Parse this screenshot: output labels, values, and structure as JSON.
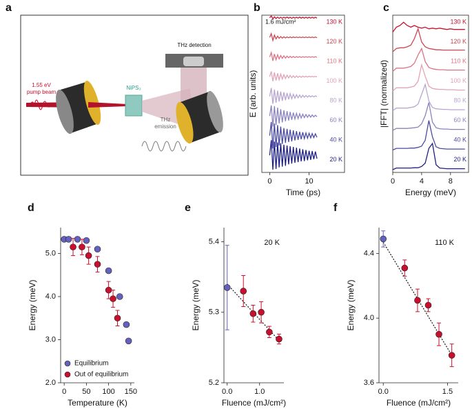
{
  "chart_data": [
    {
      "type": "diagram",
      "panel_label": "a",
      "labels": {
        "pump": [
          "1.55 eV",
          "pump beam"
        ],
        "sample": "NiPS₃",
        "detection": "THz detection",
        "emission": [
          "THz",
          "emission"
        ]
      }
    },
    {
      "type": "line",
      "panel_label": "b",
      "annotation": "1.6 mJ/cm²",
      "ylabel": "E (arb. units)",
      "xlabel": "Time (ps)",
      "xlim": [
        -2,
        19
      ],
      "xticks": [
        0,
        10
      ],
      "box": true,
      "x": [
        0,
        0.4,
        0.8,
        1.2,
        1.6,
        2,
        2.4,
        2.8,
        3.2,
        3.6,
        4,
        4.4,
        4.8,
        5.2,
        5.6,
        6,
        6.4,
        6.8,
        7.2,
        7.6,
        8,
        8.4,
        8.8,
        9.2,
        9.6,
        10,
        10.4,
        10.8,
        11.2,
        11.6,
        12
      ],
      "series": [
        {
          "name": "130 K",
          "color": "#c8102e",
          "values": [
            0,
            0.12,
            -0.08,
            0.06,
            -0.05,
            0.04,
            -0.04,
            0.03,
            -0.04,
            0.03,
            -0.03,
            0.04,
            -0.03,
            0.03,
            -0.04,
            0.03,
            -0.03,
            0.03,
            -0.03,
            0.04,
            -0.03,
            0.03,
            -0.03,
            0.03,
            -0.03,
            0.03,
            -0.03,
            0.03,
            -0.03,
            0.03,
            -0.03
          ]
        },
        {
          "name": "120 K",
          "color": "#d0454f",
          "values": [
            0,
            0.25,
            -0.2,
            0.15,
            -0.1,
            0.08,
            -0.06,
            0.05,
            -0.05,
            0.04,
            -0.04,
            0.03,
            -0.03,
            0.03,
            -0.03,
            0.03,
            -0.02,
            0.02,
            -0.02,
            0.02,
            -0.02,
            0.02,
            -0.02,
            0.02,
            -0.02,
            0.02,
            -0.02,
            0.02,
            -0.02,
            0.02,
            -0.02
          ]
        },
        {
          "name": "110 K",
          "color": "#d97583",
          "values": [
            0,
            0.3,
            -0.25,
            0.2,
            -0.18,
            0.15,
            -0.12,
            0.1,
            -0.09,
            0.08,
            -0.07,
            0.06,
            -0.05,
            0.05,
            -0.04,
            0.04,
            -0.04,
            0.03,
            -0.03,
            0.03,
            -0.03,
            0.02,
            -0.02,
            0.02,
            -0.02,
            0.02,
            -0.02,
            0.02,
            -0.02,
            0.02,
            -0.02
          ]
        },
        {
          "name": "100 K",
          "color": "#e2a3b5",
          "values": [
            0,
            0.35,
            -0.3,
            0.28,
            -0.25,
            0.22,
            -0.2,
            0.17,
            -0.15,
            0.13,
            -0.12,
            0.1,
            -0.09,
            0.08,
            -0.07,
            0.06,
            -0.06,
            0.05,
            -0.05,
            0.04,
            -0.04,
            0.04,
            -0.03,
            0.03,
            -0.03,
            0.03,
            -0.02,
            0.02,
            -0.02,
            0.02,
            -0.02
          ]
        },
        {
          "name": "80 K",
          "color": "#b8a6d0",
          "values": [
            0,
            0.55,
            -0.5,
            0.45,
            -0.42,
            0.38,
            -0.35,
            0.32,
            -0.3,
            0.27,
            -0.25,
            0.22,
            -0.2,
            0.18,
            -0.16,
            0.14,
            -0.12,
            0.11,
            -0.1,
            0.09,
            -0.08,
            0.07,
            -0.06,
            0.06,
            -0.05,
            0.05,
            -0.04,
            0.04,
            -0.04,
            0.03,
            -0.03
          ]
        },
        {
          "name": "60 K",
          "color": "#8a83c0",
          "values": [
            0,
            0.7,
            -0.7,
            0.65,
            -0.6,
            0.55,
            -0.5,
            0.45,
            -0.42,
            0.38,
            -0.35,
            0.32,
            -0.3,
            0.27,
            -0.25,
            0.22,
            -0.2,
            0.18,
            -0.17,
            0.15,
            -0.14,
            0.12,
            -0.11,
            0.1,
            -0.09,
            0.08,
            -0.08,
            0.07,
            -0.06,
            0.05,
            -0.05
          ]
        },
        {
          "name": "40 K",
          "color": "#4b4aa3",
          "values": [
            0,
            0.9,
            -0.85,
            0.8,
            -0.75,
            0.7,
            -0.65,
            0.6,
            -0.55,
            0.5,
            -0.48,
            0.45,
            -0.42,
            0.4,
            -0.38,
            0.35,
            -0.32,
            0.3,
            -0.28,
            0.26,
            -0.24,
            0.22,
            -0.2,
            0.18,
            -0.17,
            0.16,
            -0.15,
            0.14,
            -0.13,
            0.12,
            -0.11
          ]
        },
        {
          "name": "20 K",
          "color": "#1d1f85",
          "values": [
            0,
            1,
            -0.95,
            0.9,
            -0.9,
            0.85,
            -0.8,
            0.8,
            -0.75,
            0.7,
            -0.7,
            0.65,
            -0.6,
            0.6,
            -0.55,
            0.55,
            -0.5,
            0.5,
            -0.45,
            0.45,
            -0.4,
            0.4,
            -0.38,
            0.35,
            -0.33,
            0.3,
            -0.3,
            0.28,
            -0.25,
            0.25,
            -0.22
          ]
        }
      ]
    },
    {
      "type": "line",
      "panel_label": "c",
      "ylabel": "|FFT| (normalized)",
      "xlabel": "Energy (meV)",
      "xlim": [
        0,
        10.5
      ],
      "xticks": [
        0,
        4,
        8
      ],
      "box": true,
      "x": [
        0,
        0.5,
        1,
        1.5,
        2,
        2.5,
        3,
        3.5,
        4,
        4.5,
        5,
        5.5,
        6,
        6.5,
        7,
        7.5,
        8,
        8.5,
        9,
        9.5,
        10
      ],
      "series": [
        {
          "name": "130 K",
          "color": "#c8102e",
          "values": [
            0,
            0.15,
            0.2,
            0.3,
            0.2,
            0.15,
            0.2,
            0.15,
            0.12,
            0.15,
            0.1,
            0.12,
            0.1,
            0.12,
            0.1,
            0.08,
            0.1,
            0.08,
            0.08,
            0.08,
            0.08
          ]
        },
        {
          "name": "120 K",
          "color": "#d0454f",
          "values": [
            0,
            0.1,
            0.12,
            0.12,
            0.15,
            0.2,
            0.4,
            0.7,
            0.3,
            0.15,
            0.1,
            0.08,
            0.06,
            0.06,
            0.05,
            0.05,
            0.05,
            0.05,
            0.05,
            0.05,
            0.05
          ]
        },
        {
          "name": "110 K",
          "color": "#d97583",
          "values": [
            0,
            0.1,
            0.1,
            0.1,
            0.12,
            0.15,
            0.25,
            0.5,
            0.7,
            0.3,
            0.12,
            0.08,
            0.06,
            0.05,
            0.05,
            0.04,
            0.04,
            0.04,
            0.04,
            0.04,
            0.04
          ]
        },
        {
          "name": "100 K",
          "color": "#e2a3b5",
          "values": [
            0,
            0.1,
            0.1,
            0.1,
            0.1,
            0.12,
            0.15,
            0.3,
            0.8,
            0.45,
            0.15,
            0.08,
            0.06,
            0.05,
            0.05,
            0.04,
            0.04,
            0.04,
            0.03,
            0.03,
            0.03
          ]
        },
        {
          "name": "80 K",
          "color": "#b8a6d0",
          "values": [
            0,
            0.08,
            0.08,
            0.08,
            0.08,
            0.1,
            0.12,
            0.2,
            0.5,
            0.8,
            0.3,
            0.1,
            0.06,
            0.05,
            0.04,
            0.04,
            0.03,
            0.03,
            0.03,
            0.03,
            0.03
          ]
        },
        {
          "name": "60 K",
          "color": "#8a83c0",
          "values": [
            0,
            0.06,
            0.06,
            0.06,
            0.06,
            0.07,
            0.08,
            0.1,
            0.2,
            0.45,
            0.85,
            0.25,
            0.08,
            0.05,
            0.04,
            0.04,
            0.03,
            0.03,
            0.03,
            0.03,
            0.03
          ]
        },
        {
          "name": "40 K",
          "color": "#4b4aa3",
          "values": [
            0,
            0.05,
            0.05,
            0.05,
            0.05,
            0.06,
            0.06,
            0.08,
            0.12,
            0.3,
            0.9,
            0.4,
            0.1,
            0.05,
            0.04,
            0.03,
            0.03,
            0.03,
            0.03,
            0.03,
            0.03
          ]
        },
        {
          "name": "20 K",
          "color": "#1d1f85",
          "values": [
            0,
            0.05,
            0.05,
            0.05,
            0.05,
            0.05,
            0.06,
            0.06,
            0.1,
            0.2,
            0.65,
            0.8,
            0.15,
            0.05,
            0.04,
            0.03,
            0.03,
            0.03,
            0.03,
            0.03,
            0.03
          ]
        }
      ]
    },
    {
      "type": "scatter",
      "panel_label": "d",
      "ylabel": "Energy (meV)",
      "xlabel": "Temperature (K)",
      "xlim": [
        -8,
        158
      ],
      "xticks": [
        0,
        50,
        100,
        150
      ],
      "ylim": [
        2,
        5.6
      ],
      "yticks": [
        {
          "value": 2,
          "label": "2.0"
        },
        {
          "value": 3,
          "label": "3.0"
        },
        {
          "value": 4,
          "label": "4.0"
        },
        {
          "value": 5,
          "label": "5.0"
        }
      ],
      "legend": "lower left",
      "series": [
        {
          "name": "Equilibrium",
          "color": "#6460bd",
          "x": [
            0,
            10,
            30,
            50,
            75,
            100,
            125,
            140,
            145
          ],
          "values": [
            5.33,
            5.33,
            5.33,
            5.3,
            5.1,
            4.6,
            4.0,
            3.35,
            2.97
          ]
        },
        {
          "name": "Out of equilibrium",
          "color": "#c8102e",
          "x": [
            20,
            40,
            55,
            75,
            100,
            110,
            120
          ],
          "values": [
            5.15,
            5.15,
            4.95,
            4.75,
            4.15,
            3.95,
            3.5
          ],
          "errors": [
            0.2,
            0.18,
            0.2,
            0.18,
            0.2,
            0.2,
            0.18
          ]
        }
      ]
    },
    {
      "type": "scatter",
      "panel_label": "e",
      "annotation": "20 K",
      "ylabel": "Energy (meV)",
      "xlabel": "Fluence (mJ/cm²)",
      "xlim": [
        -0.1,
        1.75
      ],
      "xticks": [
        {
          "value": 0,
          "label": "0.0"
        },
        {
          "value": 1,
          "label": "1.0"
        }
      ],
      "ylim": [
        5.2,
        5.42
      ],
      "yticks": [
        5.2,
        5.3,
        5.4
      ],
      "series": [
        {
          "color": "#6460bd",
          "x": [
            0
          ],
          "values": [
            5.335
          ],
          "errors": [
            0.06
          ]
        },
        {
          "color": "#c8102e",
          "x": [
            0.5,
            0.8,
            1.05,
            1.3,
            1.6
          ],
          "values": [
            5.33,
            5.298,
            5.3,
            5.272,
            5.262
          ],
          "errors": [
            0.022,
            0.012,
            0.015,
            0.008,
            0.007
          ]
        }
      ],
      "fit": {
        "x": [
          0,
          1.6
        ],
        "values": [
          5.34,
          5.26
        ]
      }
    },
    {
      "type": "scatter",
      "panel_label": "f",
      "annotation": "110 K",
      "ylabel": "Energy (meV)",
      "xlabel": "Fluence (mJ/cm²)",
      "xlim": [
        -0.1,
        1.75
      ],
      "xticks": [
        {
          "value": 0,
          "label": "0.0"
        },
        1.5
      ],
      "ylim": [
        3.6,
        4.56
      ],
      "yticks": [
        3.6,
        {
          "value": 4,
          "label": "4.0"
        },
        4.4
      ],
      "series": [
        {
          "color": "#6460bd",
          "x": [
            0
          ],
          "values": [
            4.49
          ],
          "errors": [
            0.05
          ]
        },
        {
          "color": "#c8102e",
          "x": [
            0.5,
            0.8,
            1.05,
            1.3,
            1.6
          ],
          "values": [
            4.31,
            4.11,
            4.08,
            3.9,
            3.77
          ],
          "errors": [
            0.05,
            0.07,
            0.04,
            0.07,
            0.07
          ]
        }
      ],
      "fit": {
        "x": [
          0,
          1.6
        ],
        "values": [
          4.47,
          3.77
        ]
      }
    }
  ]
}
